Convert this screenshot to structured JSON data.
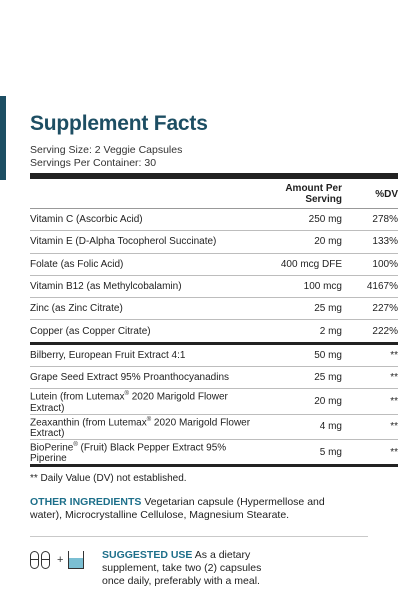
{
  "title": "Supplement Facts",
  "serving_size": "Serving Size: 2 Veggie Capsules",
  "servings_per_container": "Servings Per Container: 30",
  "table": {
    "header_amount": "Amount Per Serving",
    "header_dv": "%DV",
    "rows": [
      {
        "name": "Vitamin C (Ascorbic Acid)",
        "amount": "250 mg",
        "dv": "278%"
      },
      {
        "name": "Vitamin E (D-Alpha Tocopherol Succinate)",
        "amount": "20 mg",
        "dv": "133%"
      },
      {
        "name": "Folate (as Folic Acid)",
        "amount": "400 mcg DFE",
        "dv": "100%"
      },
      {
        "name": "Vitamin B12 (as Methylcobalamin)",
        "amount": "100 mcg",
        "dv": "4167%"
      },
      {
        "name": "Zinc (as Zinc Citrate)",
        "amount": "25 mg",
        "dv": "227%"
      },
      {
        "name": "Copper (as Copper Citrate)",
        "amount": "2 mg",
        "dv": "222%"
      },
      {
        "name": "Bilberry, European Fruit Extract 4:1",
        "amount": "50 mg",
        "dv": "**"
      },
      {
        "name": "Grape Seed Extract 95% Proanthocyanadins",
        "amount": "25 mg",
        "dv": "**"
      },
      {
        "name_pre": "Lutein (from Lutemax",
        "name_sup": "®",
        "name_post": " 2020 Marigold Flower Extract)",
        "amount": "20 mg",
        "dv": "**"
      },
      {
        "name_pre": "Zeaxanthin (from Lutemax",
        "name_sup": "®",
        "name_post": " 2020 Marigold Flower Extract)",
        "amount": "4 mg",
        "dv": "**"
      },
      {
        "name_pre": "BioPerine",
        "name_sup": "®",
        "name_post": " (Fruit) Black Pepper Extract 95% Piperine",
        "amount": "5 mg",
        "dv": "**"
      }
    ]
  },
  "footnote": "** Daily Value (DV) not established.",
  "other_ingredients": {
    "label": "OTHER INGREDIENTS",
    "text": " Vegetarian capsule (Hypermellose and water), Microcrystalline Cellulose, Magnesium Stearate."
  },
  "suggested_use": {
    "label": "SUGGESTED USE",
    "text": " As a dietary supplement, take two (2) capsules once daily, preferably with a meal.",
    "plus": "+"
  },
  "icons": [
    "capsule-icon",
    "capsule-icon",
    "water-glass-icon"
  ],
  "colors": {
    "brand": "#1d4e63",
    "accent": "#1d6f8a",
    "water": "#7bbfd3"
  }
}
